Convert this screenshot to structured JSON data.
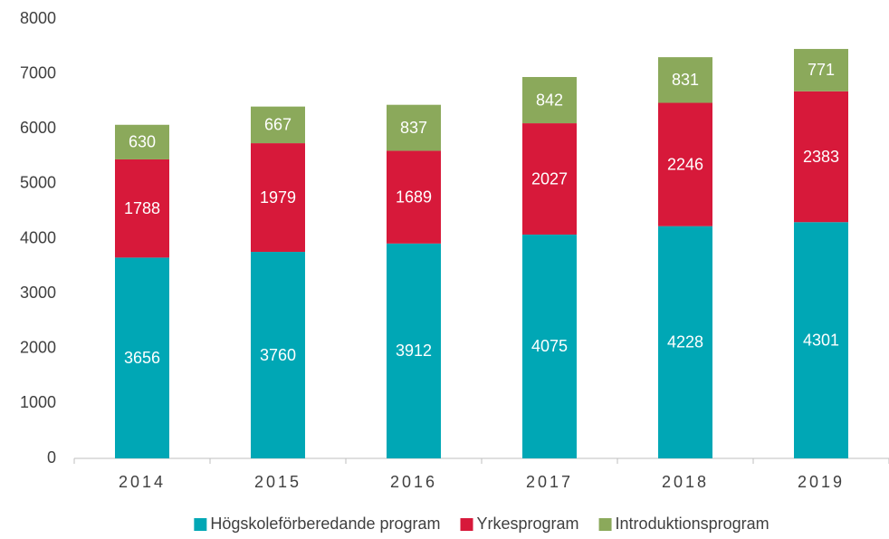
{
  "chart_data": {
    "type": "bar",
    "stacked": true,
    "categories": [
      "2014",
      "2015",
      "2016",
      "2017",
      "2018",
      "2019"
    ],
    "series": [
      {
        "name": "Högskoleförberedande program",
        "color": "#00a7b5",
        "values": [
          3656,
          3760,
          3912,
          4075,
          4228,
          4301
        ]
      },
      {
        "name": "Yrkesprogram",
        "color": "#d7193a",
        "values": [
          1788,
          1979,
          1689,
          2027,
          2246,
          2383
        ]
      },
      {
        "name": "Introduktionsprogram",
        "color": "#8ba95b",
        "values": [
          630,
          667,
          837,
          842,
          831,
          771
        ]
      }
    ],
    "ylim": [
      0,
      8000
    ],
    "yticks": [
      0,
      1000,
      2000,
      3000,
      4000,
      5000,
      6000,
      7000,
      8000
    ],
    "grid": false,
    "legend": "bottom"
  }
}
